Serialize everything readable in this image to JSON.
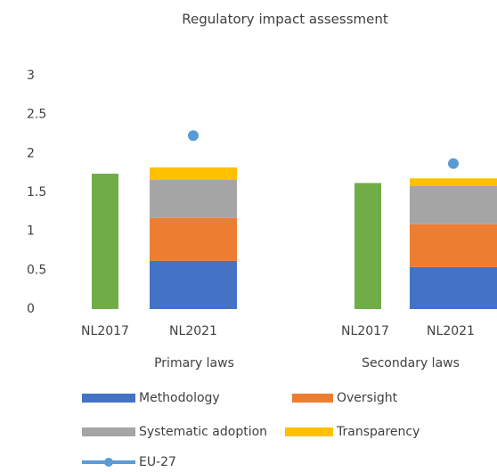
{
  "chart_data": {
    "type": "bar",
    "title": "Regulatory impact assessment",
    "categories": [
      "NL2017",
      "NL2021",
      "NL2017",
      "NL2021"
    ],
    "groups": [
      "Primary laws",
      "Secondary laws"
    ],
    "ylim": [
      0,
      3
    ],
    "yticks": [
      0,
      0.5,
      1,
      1.5,
      2,
      2.5,
      3
    ],
    "grid": false,
    "stacked": true,
    "series": [
      {
        "color": "#70ad47",
        "values": [
          1.74,
          null,
          1.62,
          null
        ]
      },
      {
        "name": "Methodology",
        "color": "#4472c4",
        "values": [
          null,
          0.62,
          null,
          0.54
        ]
      },
      {
        "name": "Oversight",
        "color": "#ed7d31",
        "values": [
          null,
          0.55,
          null,
          0.55
        ]
      },
      {
        "name": "Systematic adoption",
        "color": "#a5a5a5",
        "values": [
          null,
          0.49,
          null,
          0.49
        ]
      },
      {
        "name": "Transparency",
        "color": "#ffc000",
        "values": [
          null,
          0.16,
          null,
          0.1
        ]
      },
      {
        "name": "EU-27",
        "color": "#5b9bd5",
        "type": "line",
        "values": [
          null,
          2.23,
          null,
          1.87
        ]
      }
    ]
  }
}
